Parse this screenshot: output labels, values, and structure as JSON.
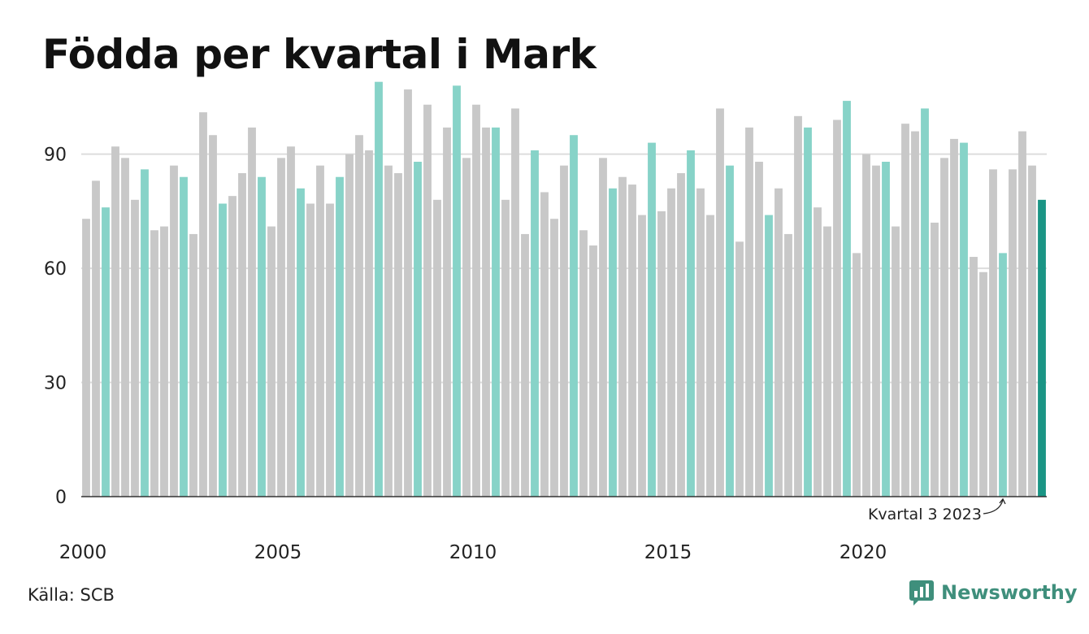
{
  "chart_data": {
    "type": "bar",
    "title": "Födda per kvartal i Mark",
    "xlabel": "",
    "ylabel": "",
    "ylim": [
      0,
      110
    ],
    "yticks": [
      0,
      30,
      60,
      90
    ],
    "grid": true,
    "x_tick_labels": [
      "2000",
      "2005",
      "2010",
      "2015",
      "2020"
    ],
    "categories": [
      "2000 Q1",
      "2000 Q2",
      "2000 Q3",
      "2000 Q4",
      "2001 Q1",
      "2001 Q2",
      "2001 Q3",
      "2001 Q4",
      "2002 Q1",
      "2002 Q2",
      "2002 Q3",
      "2002 Q4",
      "2003 Q1",
      "2003 Q2",
      "2003 Q3",
      "2003 Q4",
      "2004 Q1",
      "2004 Q2",
      "2004 Q3",
      "2004 Q4",
      "2005 Q1",
      "2005 Q2",
      "2005 Q3",
      "2005 Q4",
      "2006 Q1",
      "2006 Q2",
      "2006 Q3",
      "2006 Q4",
      "2007 Q1",
      "2007 Q2",
      "2007 Q3",
      "2007 Q4",
      "2008 Q1",
      "2008 Q2",
      "2008 Q3",
      "2008 Q4",
      "2009 Q1",
      "2009 Q2",
      "2009 Q3",
      "2009 Q4",
      "2010 Q1",
      "2010 Q2",
      "2010 Q3",
      "2010 Q4",
      "2011 Q1",
      "2011 Q2",
      "2011 Q3",
      "2011 Q4",
      "2012 Q1",
      "2012 Q2",
      "2012 Q3",
      "2012 Q4",
      "2013 Q1",
      "2013 Q2",
      "2013 Q3",
      "2013 Q4",
      "2014 Q1",
      "2014 Q2",
      "2014 Q3",
      "2014 Q4",
      "2015 Q1",
      "2015 Q2",
      "2015 Q3",
      "2015 Q4",
      "2016 Q1",
      "2016 Q2",
      "2016 Q3",
      "2016 Q4",
      "2017 Q1",
      "2017 Q2",
      "2017 Q3",
      "2017 Q4",
      "2018 Q1",
      "2018 Q2",
      "2018 Q3",
      "2018 Q4",
      "2019 Q1",
      "2019 Q2",
      "2019 Q3",
      "2019 Q4",
      "2020 Q1",
      "2020 Q2",
      "2020 Q3",
      "2020 Q4",
      "2021 Q1",
      "2021 Q2",
      "2021 Q3",
      "2021 Q4",
      "2022 Q1",
      "2022 Q2",
      "2022 Q3",
      "2022 Q4",
      "2023 Q1",
      "2023 Q2",
      "2023 Q3",
      "2023 Q4",
      "2024 Q1",
      "2024 Q2",
      "2024 Q3"
    ],
    "values": [
      73,
      83,
      76,
      92,
      89,
      78,
      86,
      70,
      71,
      87,
      84,
      69,
      101,
      95,
      77,
      79,
      85,
      97,
      84,
      71,
      89,
      92,
      81,
      77,
      87,
      77,
      84,
      90,
      95,
      91,
      109,
      87,
      85,
      107,
      88,
      103,
      78,
      97,
      108,
      89,
      103,
      97,
      97,
      78,
      102,
      69,
      91,
      80,
      73,
      87,
      95,
      70,
      66,
      89,
      81,
      84,
      82,
      74,
      93,
      75,
      81,
      85,
      91,
      81,
      74,
      102,
      87,
      67,
      97,
      88,
      74,
      81,
      69,
      100,
      97,
      76,
      71,
      99,
      104,
      64,
      90,
      87,
      88,
      71,
      98,
      96,
      102,
      72,
      89,
      94,
      93,
      63,
      59,
      86,
      64,
      86,
      96,
      87,
      78
    ],
    "annotation": {
      "text": "Kvartal 3 2023",
      "category": "2023 Q3"
    },
    "colors": {
      "default": "#c8c8c8",
      "quarter3": "#87d3c8",
      "latest": "#1a9585",
      "grid": "#dddddd",
      "axis": "#333333"
    }
  },
  "footer": {
    "source": "Källa: SCB",
    "brand": "Newsworthy"
  },
  "icons": {
    "brand_logo": "newsworthy-logo-icon"
  }
}
